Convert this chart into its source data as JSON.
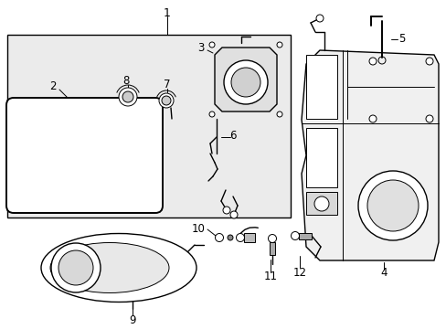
{
  "bg_color": "#ffffff",
  "lc": "#000000",
  "gray_fill": "#e8e8e8",
  "figsize": [
    4.89,
    3.6
  ],
  "dpi": 100
}
